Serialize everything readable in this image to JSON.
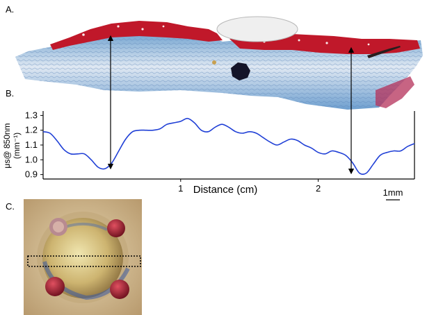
{
  "labels": {
    "panel_a": "A.",
    "panel_b": "B.",
    "panel_c": "C."
  },
  "scale_bar": {
    "label": "1mm"
  },
  "colors": {
    "curve": "#1f3fd6",
    "tissue_red": "#c0182a",
    "tissue_blue": "#4a86c0"
  },
  "chart_data": {
    "type": "line",
    "title": "",
    "xlabel": "Distance (cm)",
    "ylabel_main": "μs@ 850nm",
    "ylabel_unit": "(mm⁻¹)",
    "xlim": [
      0,
      2.7
    ],
    "ylim": [
      0.87,
      1.33
    ],
    "xticks": [
      1,
      2
    ],
    "xticklabels": [
      "1",
      "2"
    ],
    "yticks": [
      0.9,
      1.0,
      1.1,
      1.2,
      1.3
    ],
    "yticklabels": [
      "0.9",
      "1.0",
      "1.1",
      "1.2",
      "1.3"
    ],
    "grid": false,
    "series": [
      {
        "name": "",
        "x": [
          0.0,
          0.05,
          0.1,
          0.15,
          0.2,
          0.25,
          0.3,
          0.35,
          0.4,
          0.45,
          0.5,
          0.55,
          0.6,
          0.65,
          0.7,
          0.75,
          0.8,
          0.85,
          0.9,
          0.95,
          1.0,
          1.05,
          1.1,
          1.15,
          1.2,
          1.25,
          1.3,
          1.35,
          1.4,
          1.45,
          1.5,
          1.55,
          1.6,
          1.65,
          1.7,
          1.75,
          1.8,
          1.85,
          1.9,
          1.95,
          2.0,
          2.05,
          2.1,
          2.15,
          2.2,
          2.25,
          2.3,
          2.35,
          2.4,
          2.45,
          2.5,
          2.55,
          2.6,
          2.65,
          2.7
        ],
        "y": [
          1.19,
          1.18,
          1.13,
          1.07,
          1.04,
          1.04,
          1.04,
          1.0,
          0.95,
          0.94,
          0.98,
          1.06,
          1.14,
          1.19,
          1.2,
          1.2,
          1.2,
          1.21,
          1.24,
          1.25,
          1.26,
          1.28,
          1.25,
          1.2,
          1.19,
          1.22,
          1.24,
          1.22,
          1.19,
          1.18,
          1.19,
          1.18,
          1.15,
          1.12,
          1.1,
          1.12,
          1.14,
          1.13,
          1.1,
          1.08,
          1.05,
          1.04,
          1.06,
          1.05,
          1.03,
          0.98,
          0.91,
          0.91,
          0.97,
          1.03,
          1.05,
          1.06,
          1.06,
          1.09,
          1.11
        ]
      }
    ]
  }
}
